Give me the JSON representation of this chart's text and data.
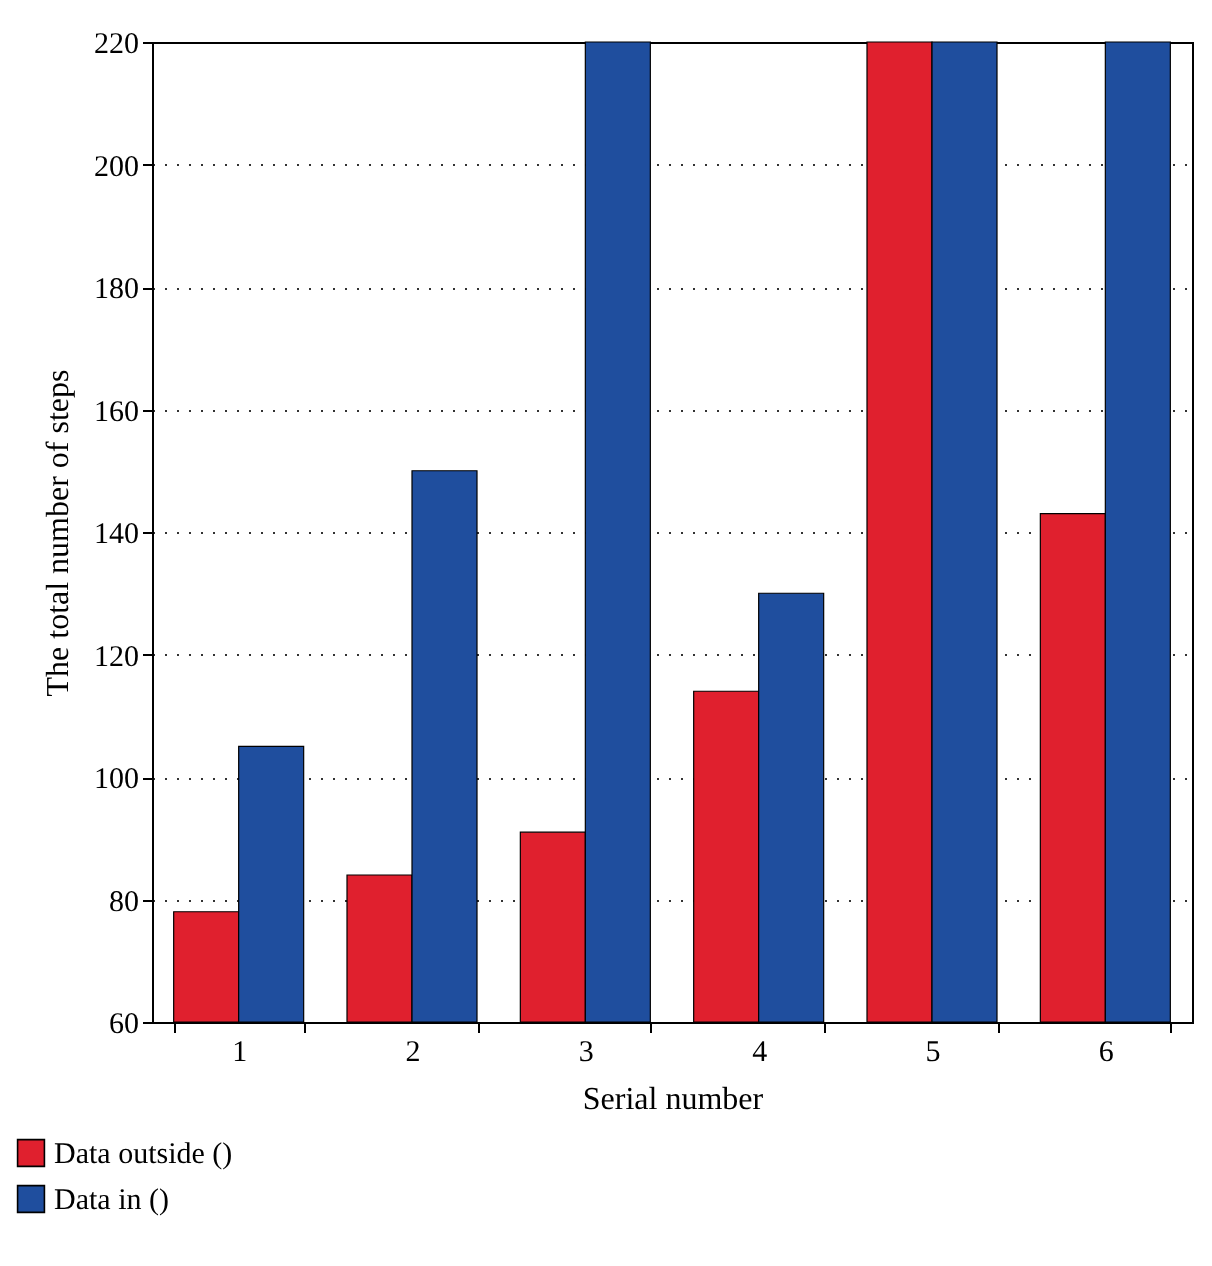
{
  "chart_data": {
    "type": "bar",
    "xlabel": "Serial number",
    "ylabel": "The total number of steps",
    "categories": [
      "1",
      "2",
      "3",
      "4",
      "5",
      "6"
    ],
    "series": [
      {
        "name": "Data outside ()",
        "color": "#e0202e",
        "values": [
          78,
          84,
          91,
          114,
          220,
          143
        ]
      },
      {
        "name": "Data in ()",
        "color": "#1f4e9e",
        "values": [
          105,
          150,
          220,
          130,
          220,
          220
        ]
      }
    ],
    "ylim": [
      60,
      220
    ],
    "yticks": [
      60,
      80,
      100,
      120,
      140,
      160,
      180,
      200,
      220
    ],
    "grid": "y",
    "legend": "bottom left"
  }
}
